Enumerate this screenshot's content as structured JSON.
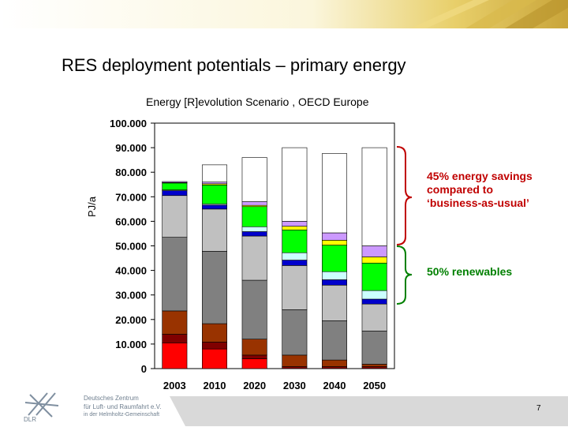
{
  "slide": {
    "title": "RES deployment potentials – primary energy",
    "page_number": "7"
  },
  "logo": {
    "line1": "Deutsches Zentrum",
    "line2": "für Luft- und Raumfahrt e.V.",
    "line3": "in der Helmholtz-Gemeinschaft",
    "mark": "DLR"
  },
  "annotations": {
    "savings": "45% energy savings compared to ‘business-as-usual’",
    "renewables": "50% renewables",
    "savings_color": "#c00000",
    "renewables_color": "#008000"
  },
  "chart_data": {
    "type": "bar",
    "stacked": true,
    "title": "Energy [R]evolution Scenario , OECD Europe",
    "ylabel": "PJ/a",
    "xlabel": "",
    "ylim": [
      0,
      100000
    ],
    "yticks": [
      {
        "value": 0,
        "label": "0"
      },
      {
        "value": 10000,
        "label": "10.000"
      },
      {
        "value": 20000,
        "label": "20.000"
      },
      {
        "value": 30000,
        "label": "30.000"
      },
      {
        "value": 40000,
        "label": "40.000"
      },
      {
        "value": 50000,
        "label": "50.000"
      },
      {
        "value": 60000,
        "label": "60.000"
      },
      {
        "value": 70000,
        "label": "70.000"
      },
      {
        "value": 80000,
        "label": "80.000"
      },
      {
        "value": 90000,
        "label": "90.000"
      },
      {
        "value": 100000,
        "label": "100.000"
      }
    ],
    "grid": false,
    "legend": "none",
    "categories": [
      "2003",
      "2010",
      "2020",
      "2030",
      "2040",
      "2050"
    ],
    "series": [
      {
        "color": "#ff0000",
        "values": [
          10500,
          8000,
          4000,
          0,
          0,
          0
        ]
      },
      {
        "color": "#800000",
        "values": [
          3500,
          2800,
          1500,
          800,
          800,
          800
        ]
      },
      {
        "color": "#993300",
        "values": [
          9500,
          7500,
          6500,
          4700,
          2700,
          1000
        ]
      },
      {
        "color": "#808080",
        "values": [
          30000,
          29500,
          24000,
          18500,
          16000,
          13500
        ]
      },
      {
        "color": "#c0c0c0",
        "values": [
          17000,
          17200,
          18000,
          18000,
          14500,
          11000
        ]
      },
      {
        "color": "#0000cc",
        "values": [
          2000,
          1600,
          1800,
          2200,
          2200,
          2000
        ]
      },
      {
        "color": "#ccffff",
        "values": [
          300,
          500,
          2000,
          3000,
          3300,
          3500
        ]
      },
      {
        "color": "#00ff00",
        "values": [
          2800,
          7700,
          8200,
          9300,
          10800,
          11200
        ]
      },
      {
        "color": "#ffff00",
        "values": [
          200,
          500,
          500,
          1500,
          2000,
          2500
        ]
      },
      {
        "color": "#cc99ff",
        "values": [
          400,
          700,
          1500,
          2000,
          3000,
          4500
        ]
      },
      {
        "color": "#ffffff",
        "values": [
          0,
          7000,
          18000,
          30000,
          32300,
          40000
        ]
      }
    ]
  }
}
